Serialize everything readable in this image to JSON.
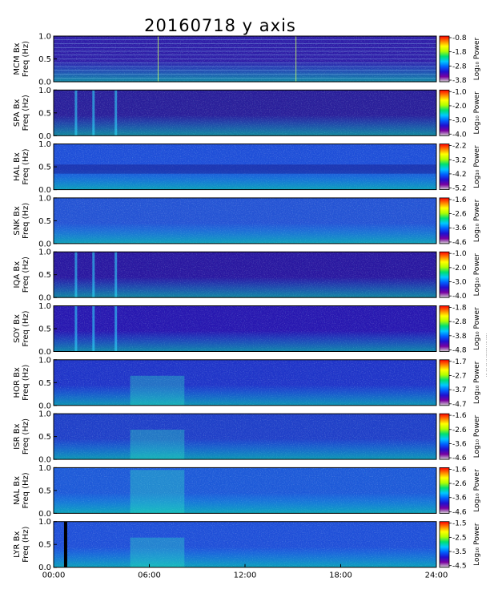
{
  "chart_data": {
    "type": "heatmap",
    "title": "20160718 y axis",
    "x_ticks": [
      "00:00",
      "06:00",
      "12:00",
      "18:00",
      "24:00"
    ],
    "x_range_hours": [
      0,
      24
    ],
    "y_range": [
      0,
      1.0
    ],
    "y_ticks": [
      "0.0",
      "0.5",
      "1.0"
    ],
    "colorbar_label": "Log₁₀ Power",
    "colormap": [
      "#d0d0d0",
      "#7a00a0",
      "#2010d0",
      "#0060ff",
      "#00c8ff",
      "#00e070",
      "#b0ff00",
      "#ffff00",
      "#ff8000",
      "#ff0000"
    ],
    "side_note": "... ... ... .. ......... ... .....",
    "panels": [
      {
        "station": "MCM",
        "component": "Bx",
        "ylabel_station": "MCM Bx",
        "ylabel_units": "Freq (Hz)",
        "cbar_ticks": [
          "-0.8",
          "-1.8",
          "-2.8",
          "-3.8"
        ]
      },
      {
        "station": "SPA",
        "component": "Bx",
        "ylabel_station": "SPA Bx",
        "ylabel_units": "Freq (Hz)",
        "cbar_ticks": [
          "-1.0",
          "-2.0",
          "-3.0",
          "-4.0"
        ]
      },
      {
        "station": "HAL",
        "component": "Bx",
        "ylabel_station": "HAL Bx",
        "ylabel_units": "Freq (Hz)",
        "cbar_ticks": [
          "-2.2",
          "-3.2",
          "-4.2",
          "-5.2"
        ]
      },
      {
        "station": "SNK",
        "component": "Bx",
        "ylabel_station": "SNK Bx",
        "ylabel_units": "Freq (Hz)",
        "cbar_ticks": [
          "-1.6",
          "-2.6",
          "-3.6",
          "-4.6"
        ]
      },
      {
        "station": "IQA",
        "component": "Bx",
        "ylabel_station": "IQA Bx",
        "ylabel_units": "Freq (Hz)",
        "cbar_ticks": [
          "-1.0",
          "-2.0",
          "-3.0",
          "-4.0"
        ]
      },
      {
        "station": "SOY",
        "component": "Bx",
        "ylabel_station": "SOY Bx",
        "ylabel_units": "Freq (Hz)",
        "cbar_ticks": [
          "-1.8",
          "-2.8",
          "-3.8",
          "-4.8"
        ]
      },
      {
        "station": "HOR",
        "component": "Bx",
        "ylabel_station": "HOR Bx",
        "ylabel_units": "Freq (Hz)",
        "cbar_ticks": [
          "-1.7",
          "-2.7",
          "-3.7",
          "-4.7"
        ]
      },
      {
        "station": "ISR",
        "component": "Bx",
        "ylabel_station": "ISR Bx",
        "ylabel_units": "Freq (Hz)",
        "cbar_ticks": [
          "-1.6",
          "-2.6",
          "-3.6",
          "-4.6"
        ]
      },
      {
        "station": "NAL",
        "component": "Bx",
        "ylabel_station": "NAL Bx",
        "ylabel_units": "Freq (Hz)",
        "cbar_ticks": [
          "-1.6",
          "-2.6",
          "-3.6",
          "-4.6"
        ]
      },
      {
        "station": "LYR",
        "component": "Bx",
        "ylabel_station": "LYR Bx",
        "ylabel_units": "Freq (Hz)",
        "cbar_ticks": [
          "-1.5",
          "-2.5",
          "-3.5",
          "-4.5"
        ]
      }
    ]
  }
}
